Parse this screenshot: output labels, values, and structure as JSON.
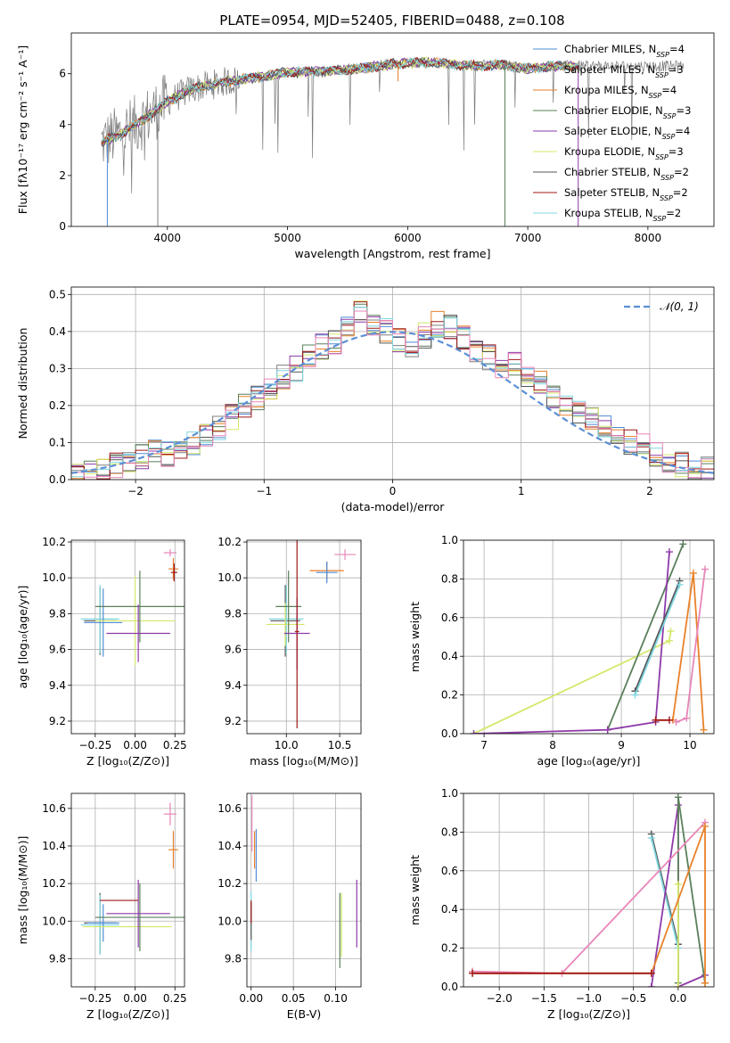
{
  "figure": {
    "title": "PLATE=0954, MJD=52405, FIBERID=0488, z=0.108"
  },
  "colors": {
    "Chabrier MILES": "#4f8bd6",
    "Salpeter MILES": "#7f7f7f",
    "Kroupa MILES": "#e8822a",
    "Chabrier ELODIE": "#5a7f5a",
    "Salpeter ELODIE": "#8e3aa8",
    "Kroupa ELODIE": "#d4e86a",
    "Chabrier STELIB": "#555555",
    "Salpeter STELIB": "#a01818",
    "Kroupa STELIB": "#7fd6e0",
    "pink": "#e886b8",
    "data": "#7a7a7a",
    "gauss": "#5b8fd6"
  },
  "chart_data": [
    {
      "id": "spectrum",
      "type": "line",
      "xlabel": "wavelength [Angstrom, rest frame]",
      "ylabel": "Flux [fλ10⁻¹⁷ erg cm⁻² s⁻¹ A⁻¹]",
      "xlim": [
        3200,
        8550
      ],
      "ylim": [
        0,
        7.6
      ],
      "xticks": [
        4000,
        5000,
        6000,
        7000,
        8000
      ],
      "yticks": [
        0,
        2,
        4,
        6
      ],
      "legend_position": "upper-right",
      "legend": [
        {
          "name": "Chabrier MILES, N",
          "sub": "SSP",
          "suffix": "=4",
          "color": "#4f8bd6"
        },
        {
          "name": "Salpeter MILES, N",
          "sub": "SSP",
          "suffix": "=3",
          "color": "#7f7f7f"
        },
        {
          "name": "Kroupa MILES, N",
          "sub": "SSP",
          "suffix": "=4",
          "color": "#e8822a"
        },
        {
          "name": "Chabrier ELODIE, N",
          "sub": "SSP",
          "suffix": "=3",
          "color": "#5a7f5a"
        },
        {
          "name": "Salpeter ELODIE, N",
          "sub": "SSP",
          "suffix": "=4",
          "color": "#8e3aa8"
        },
        {
          "name": "Kroupa ELODIE, N",
          "sub": "SSP",
          "suffix": "=3",
          "color": "#d4e86a"
        },
        {
          "name": "Chabrier STELIB, N",
          "sub": "SSP",
          "suffix": "=2",
          "color": "#555555"
        },
        {
          "name": "Salpeter STELIB, N",
          "sub": "SSP",
          "suffix": "=2",
          "color": "#a01818"
        },
        {
          "name": "Kroupa STELIB, N",
          "sub": "SSP",
          "suffix": "=2",
          "color": "#7fd6e0"
        }
      ],
      "continuum": {
        "x": [
          3450,
          3600,
          3800,
          4000,
          4200,
          4500,
          4800,
          5000,
          5300,
          5600,
          5900,
          6200,
          6500,
          6800,
          7000,
          7200,
          7400
        ],
        "y": [
          3.3,
          3.6,
          4.2,
          4.9,
          5.4,
          5.7,
          5.9,
          6.05,
          6.1,
          6.2,
          6.4,
          6.45,
          6.3,
          6.35,
          6.2,
          6.3,
          6.3
        ]
      },
      "data_x_range": [
        3450,
        8300
      ],
      "model_x_range": [
        3450,
        7420
      ],
      "model_cutoff_drop": [
        [
          3500,
          0
        ],
        [
          3920,
          0
        ],
        [
          5920,
          5.7
        ],
        [
          6810,
          0
        ],
        [
          7420,
          0
        ]
      ]
    },
    {
      "id": "residuals",
      "type": "bar",
      "xlabel": "(data-model)/error",
      "ylabel": "Normed distribution",
      "xlim": [
        -2.5,
        2.5
      ],
      "ylim": [
        0,
        0.52
      ],
      "xticks": [
        -2,
        -1,
        0,
        1,
        2
      ],
      "yticks": [
        0.0,
        0.1,
        0.2,
        0.3,
        0.4,
        0.5
      ],
      "grid": true,
      "bin_edges": [
        -2.5,
        -2.4,
        -2.3,
        -2.2,
        -2.1,
        -2.0,
        -1.9,
        -1.8,
        -1.7,
        -1.6,
        -1.5,
        -1.4,
        -1.3,
        -1.2,
        -1.1,
        -1.0,
        -0.9,
        -0.8,
        -0.7,
        -0.6,
        -0.5,
        -0.4,
        -0.3,
        -0.2,
        -0.1,
        0.0,
        0.1,
        0.2,
        0.3,
        0.4,
        0.5,
        0.6,
        0.7,
        0.8,
        0.9,
        1.0,
        1.1,
        1.2,
        1.3,
        1.4,
        1.5,
        1.6,
        1.7,
        1.8,
        1.9,
        2.0,
        2.1,
        2.2,
        2.3,
        2.4,
        2.5
      ],
      "hist_base": [
        0.01,
        0.02,
        0.03,
        0.04,
        0.05,
        0.06,
        0.08,
        0.07,
        0.09,
        0.1,
        0.12,
        0.14,
        0.17,
        0.2,
        0.22,
        0.25,
        0.28,
        0.3,
        0.33,
        0.36,
        0.37,
        0.42,
        0.45,
        0.41,
        0.4,
        0.38,
        0.36,
        0.39,
        0.42,
        0.41,
        0.38,
        0.34,
        0.33,
        0.3,
        0.31,
        0.28,
        0.26,
        0.22,
        0.2,
        0.18,
        0.16,
        0.15,
        0.12,
        0.1,
        0.09,
        0.07,
        0.05,
        0.04,
        0.03,
        0.03
      ],
      "legend": [
        {
          "name": "𝒩(0, 1)",
          "color": "#5b8fd6"
        }
      ],
      "legend_position": "upper-right"
    },
    {
      "id": "age-vs-Z",
      "type": "scatter",
      "xlabel": "Z [log₁₀(Z/Z⊙)]",
      "ylabel": "age  [log₁₀(age/yr)]",
      "xlim": [
        -0.4,
        0.31
      ],
      "ylim": [
        9.13,
        10.21
      ],
      "xticks": [
        -0.25,
        0.0,
        0.25
      ],
      "xtick_labels": [
        "−0.25",
        "0.00",
        "0.25"
      ],
      "yticks": [
        9.2,
        9.4,
        9.6,
        9.8,
        10.0,
        10.2
      ],
      "grid": true,
      "points": [
        {
          "x": -0.22,
          "y": 9.76,
          "xerr": 0.1,
          "yerr": 0.19,
          "color": "#555555"
        },
        {
          "x": -0.22,
          "y": 9.77,
          "xerr": 0.12,
          "yerr": 0.19,
          "color": "#7fd6e0"
        },
        {
          "x": -0.2,
          "y": 9.75,
          "xerr": 0.12,
          "yerr": 0.19,
          "color": "#4f8bd6"
        },
        {
          "x": 0.0,
          "y": 9.76,
          "xerr": 0.25,
          "yerr": 0.25,
          "color": "#d4e86a"
        },
        {
          "x": 0.03,
          "y": 9.84,
          "xerr": 0.28,
          "yerr": 0.2,
          "color": "#5a7f5a"
        },
        {
          "x": 0.02,
          "y": 9.69,
          "xerr": 0.2,
          "yerr": 0.16,
          "color": "#8e3aa8"
        },
        {
          "x": 0.24,
          "y": 10.05,
          "xerr": 0.03,
          "yerr": 0.06,
          "color": "#e8822a"
        },
        {
          "x": 0.22,
          "y": 10.14,
          "xerr": 0.04,
          "yerr": 0.02,
          "color": "#e886b8"
        },
        {
          "x": 0.245,
          "y": 10.03,
          "xerr": 0.02,
          "yerr": 0.05,
          "color": "#a01818"
        }
      ]
    },
    {
      "id": "age-vs-mass",
      "type": "scatter",
      "xlabel": "mass [log₁₀(M/M⊙)]",
      "ylabel": "",
      "xlim": [
        9.63,
        10.7
      ],
      "ylim": [
        9.13,
        10.21
      ],
      "xticks": [
        10.0,
        10.5
      ],
      "xtick_labels": [
        "10.0",
        "10.5"
      ],
      "yticks": [
        9.2,
        9.4,
        9.6,
        9.8,
        10.0,
        10.2
      ],
      "grid": true,
      "points": [
        {
          "x": 9.99,
          "y": 9.76,
          "xerr": 0.14,
          "yerr": 0.2,
          "color": "#555555"
        },
        {
          "x": 10.0,
          "y": 9.77,
          "xerr": 0.16,
          "yerr": 0.19,
          "color": "#7fd6e0"
        },
        {
          "x": 9.99,
          "y": 9.74,
          "xerr": 0.18,
          "yerr": 0.12,
          "color": "#d4e86a"
        },
        {
          "x": 10.02,
          "y": 9.84,
          "xerr": 0.12,
          "yerr": 0.2,
          "color": "#5a7f5a"
        },
        {
          "x": 10.1,
          "y": 9.69,
          "xerr": 0.12,
          "yerr": 0.2,
          "color": "#8e3aa8"
        },
        {
          "x": 10.1,
          "y": 9.7,
          "xerr": 0.02,
          "yerr": 0.54,
          "color": "#a01818"
        },
        {
          "x": 10.38,
          "y": 10.04,
          "xerr": 0.16,
          "yerr": 0.05,
          "color": "#e8822a"
        },
        {
          "x": 10.55,
          "y": 10.13,
          "xerr": 0.1,
          "yerr": 0.03,
          "color": "#e886b8"
        },
        {
          "x": 10.38,
          "y": 10.03,
          "xerr": 0.1,
          "yerr": 0.06,
          "color": "#4f8bd6"
        }
      ]
    },
    {
      "id": "weight-vs-age",
      "type": "line",
      "xlabel": "age  [log₁₀(age/yr)]",
      "ylabel": "mass weight",
      "xlim": [
        6.7,
        10.35
      ],
      "ylim": [
        0,
        1.0
      ],
      "xticks": [
        7,
        8,
        9,
        10
      ],
      "yticks": [
        0.0,
        0.2,
        0.4,
        0.6,
        0.8,
        1.0
      ],
      "grid": true,
      "series": [
        {
          "color": "#d4e86a",
          "x": [
            6.85,
            9.7,
            9.72
          ],
          "y": [
            0.0,
            0.48,
            0.53
          ]
        },
        {
          "color": "#5a7f5a",
          "x": [
            8.8,
            9.9
          ],
          "y": [
            0.02,
            0.98
          ]
        },
        {
          "color": "#8e3aa8",
          "x": [
            6.85,
            8.8,
            9.5,
            9.7
          ],
          "y": [
            0.0,
            0.02,
            0.06,
            0.94
          ]
        },
        {
          "color": "#555555",
          "x": [
            9.2,
            9.85
          ],
          "y": [
            0.22,
            0.79
          ]
        },
        {
          "color": "#7fd6e0",
          "x": [
            9.2,
            9.85
          ],
          "y": [
            0.2,
            0.77
          ]
        },
        {
          "color": "#e8822a",
          "x": [
            9.5,
            9.75,
            10.05,
            10.2
          ],
          "y": [
            0.07,
            0.07,
            0.83,
            0.02
          ]
        },
        {
          "color": "#e886b8",
          "x": [
            9.8,
            9.95,
            10.22
          ],
          "y": [
            0.06,
            0.08,
            0.85
          ]
        },
        {
          "color": "#a01818",
          "x": [
            9.5,
            9.7
          ],
          "y": [
            0.07,
            0.07
          ]
        }
      ]
    },
    {
      "id": "mass-vs-Z",
      "type": "scatter",
      "xlabel": "Z [log₁₀(Z/Z⊙)]",
      "ylabel": "mass [log₁₀(M/M⊙)]",
      "xlim": [
        -0.4,
        0.31
      ],
      "ylim": [
        9.65,
        10.68
      ],
      "xticks": [
        -0.25,
        0.0,
        0.25
      ],
      "xtick_labels": [
        "−0.25",
        "0.00",
        "0.25"
      ],
      "yticks": [
        9.8,
        10.0,
        10.2,
        10.4,
        10.6
      ],
      "grid": true,
      "points": [
        {
          "x": -0.22,
          "y": 9.99,
          "xerr": 0.1,
          "yerr": 0.16,
          "color": "#555555"
        },
        {
          "x": -0.22,
          "y": 9.98,
          "xerr": 0.12,
          "yerr": 0.16,
          "color": "#7fd6e0"
        },
        {
          "x": -0.2,
          "y": 9.99,
          "xerr": 0.1,
          "yerr": 0.1,
          "color": "#4f8bd6"
        },
        {
          "x": -0.05,
          "y": 9.97,
          "xerr": 0.28,
          "yerr": 0.0,
          "color": "#d4e86a"
        },
        {
          "x": 0.03,
          "y": 10.02,
          "xerr": 0.28,
          "yerr": 0.18,
          "color": "#5a7f5a"
        },
        {
          "x": 0.02,
          "y": 10.04,
          "xerr": 0.2,
          "yerr": 0.18,
          "color": "#8e3aa8"
        },
        {
          "x": -0.1,
          "y": 10.11,
          "xerr": 0.12,
          "yerr": 0.0,
          "color": "#a01818"
        },
        {
          "x": 0.24,
          "y": 10.38,
          "xerr": 0.03,
          "yerr": 0.1,
          "color": "#e8822a"
        },
        {
          "x": 0.22,
          "y": 10.57,
          "xerr": 0.04,
          "yerr": 0.06,
          "color": "#e886b8"
        }
      ]
    },
    {
      "id": "mass-vs-EBV",
      "type": "scatter",
      "xlabel": "E(B-V)",
      "ylabel": "",
      "xlim": [
        -0.005,
        0.13
      ],
      "ylim": [
        9.65,
        10.68
      ],
      "xticks": [
        0.0,
        0.05,
        0.1
      ],
      "xtick_labels": [
        "0.00",
        "0.05",
        "0.10"
      ],
      "yticks": [
        9.8,
        10.0,
        10.2,
        10.4,
        10.6
      ],
      "grid": true,
      "points": [
        {
          "x": 0.0,
          "y": 10.0,
          "xerr": 0.0,
          "yerr": 0.16,
          "color": "#7fd6e0"
        },
        {
          "x": 0.0,
          "y": 10.0,
          "xerr": 0.0,
          "yerr": 0.1,
          "color": "#555555"
        },
        {
          "x": 0.001,
          "y": 10.52,
          "xerr": 0.0,
          "yerr": 0.15,
          "color": "#e886b8"
        },
        {
          "x": 0.004,
          "y": 10.38,
          "xerr": 0.0,
          "yerr": 0.1,
          "color": "#e8822a"
        },
        {
          "x": 0.006,
          "y": 10.35,
          "xerr": 0.0,
          "yerr": 0.14,
          "color": "#4f8bd6"
        },
        {
          "x": 0.0,
          "y": 10.05,
          "xerr": 0.0,
          "yerr": 0.06,
          "color": "#a01818"
        },
        {
          "x": 0.105,
          "y": 9.95,
          "xerr": 0.0,
          "yerr": 0.2,
          "color": "#5a7f5a"
        },
        {
          "x": 0.107,
          "y": 9.98,
          "xerr": 0.0,
          "yerr": 0.17,
          "color": "#d4e86a"
        },
        {
          "x": 0.125,
          "y": 10.04,
          "xerr": 0.0,
          "yerr": 0.18,
          "color": "#8e3aa8"
        }
      ]
    },
    {
      "id": "weight-vs-Z",
      "type": "line",
      "xlabel": "Z [log₁₀(Z/Z⊙)]",
      "ylabel": "mass weight",
      "xlim": [
        -2.4,
        0.4
      ],
      "ylim": [
        0,
        1.0
      ],
      "xticks": [
        -2.0,
        -1.5,
        -1.0,
        -0.5,
        0.0
      ],
      "xtick_labels": [
        "−2.0",
        "−1.5",
        "−1.0",
        "−0.5",
        "0.0"
      ],
      "yticks": [
        0.0,
        0.2,
        0.4,
        0.6,
        0.8,
        1.0
      ],
      "grid": true,
      "series": [
        {
          "color": "#555555",
          "x": [
            -0.3,
            0.0
          ],
          "y": [
            0.79,
            0.22
          ]
        },
        {
          "color": "#7fd6e0",
          "x": [
            -0.3,
            0.0
          ],
          "y": [
            0.77,
            0.2
          ]
        },
        {
          "color": "#8e3aa8",
          "x": [
            -0.3,
            0.0,
            0.0,
            0.3
          ],
          "y": [
            0.0,
            0.94,
            0.0,
            0.06
          ]
        },
        {
          "color": "#5a7f5a",
          "x": [
            0.0,
            0.0,
            0.3
          ],
          "y": [
            0.02,
            0.98,
            0.02
          ]
        },
        {
          "color": "#d4e86a",
          "x": [
            0.0,
            0.0
          ],
          "y": [
            0.0,
            0.53
          ]
        },
        {
          "color": "#e886b8",
          "x": [
            -2.3,
            -1.3,
            0.3
          ],
          "y": [
            0.08,
            0.07,
            0.85
          ]
        },
        {
          "color": "#e8822a",
          "x": [
            -2.3,
            -0.3,
            -0.3,
            0.3,
            0.3
          ],
          "y": [
            0.07,
            0.07,
            0.07,
            0.83,
            0.02
          ]
        },
        {
          "color": "#a01818",
          "x": [
            -2.3,
            -0.3
          ],
          "y": [
            0.07,
            0.07
          ]
        }
      ]
    }
  ]
}
